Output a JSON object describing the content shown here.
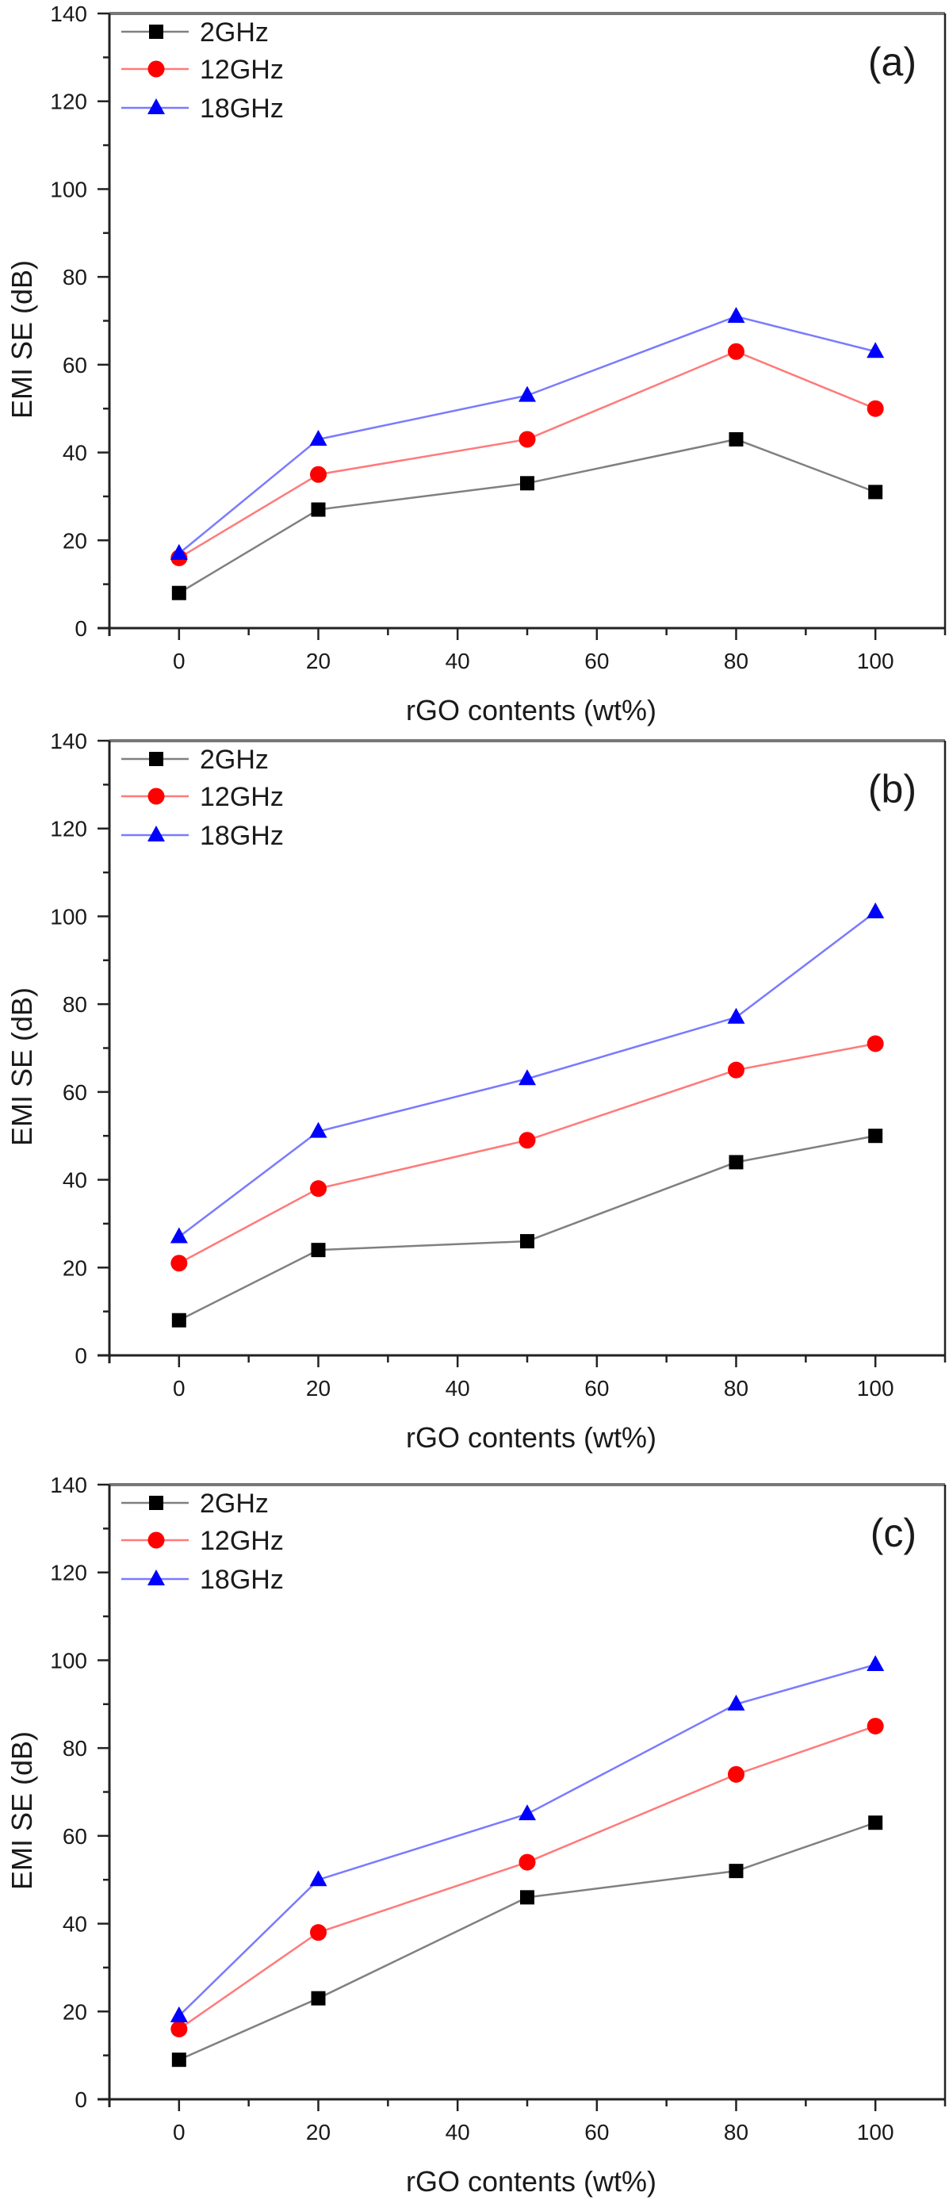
{
  "chart_data": [
    {
      "type": "line",
      "panel_label": "(a)",
      "xlabel": "rGO contents (wt%)",
      "ylabel": "EMI SE (dB)",
      "xlim": [
        -10,
        110
      ],
      "ylim": [
        0,
        140
      ],
      "xticks": [
        0,
        20,
        40,
        60,
        80,
        100
      ],
      "yticks": [
        0,
        20,
        40,
        60,
        80,
        100,
        120,
        140
      ],
      "grid": false,
      "legend_position": "top-left",
      "x": [
        0,
        20,
        50,
        80,
        100
      ],
      "series": [
        {
          "name": "2GHz",
          "marker": "square",
          "marker_color": "#000000",
          "line_color": "#808080",
          "values": [
            8,
            27,
            33,
            43,
            31
          ]
        },
        {
          "name": "12GHz",
          "marker": "circle",
          "marker_color": "#ff0000",
          "line_color": "#ff7a7a",
          "values": [
            16,
            35,
            43,
            63,
            50
          ]
        },
        {
          "name": "18GHz",
          "marker": "triangle",
          "marker_color": "#0000ff",
          "line_color": "#7a7aff",
          "values": [
            17,
            43,
            53,
            71,
            63
          ]
        }
      ]
    },
    {
      "type": "line",
      "panel_label": "(b)",
      "xlabel": "rGO contents (wt%)",
      "ylabel": "EMI SE (dB)",
      "xlim": [
        -10,
        110
      ],
      "ylim": [
        0,
        140
      ],
      "xticks": [
        0,
        20,
        40,
        60,
        80,
        100
      ],
      "yticks": [
        0,
        20,
        40,
        60,
        80,
        100,
        120,
        140
      ],
      "grid": false,
      "legend_position": "top-left",
      "x": [
        0,
        20,
        50,
        80,
        100
      ],
      "series": [
        {
          "name": "2GHz",
          "marker": "square",
          "marker_color": "#000000",
          "line_color": "#808080",
          "values": [
            8,
            24,
            26,
            44,
            50
          ]
        },
        {
          "name": "12GHz",
          "marker": "circle",
          "marker_color": "#ff0000",
          "line_color": "#ff7a7a",
          "values": [
            21,
            38,
            49,
            65,
            71
          ]
        },
        {
          "name": "18GHz",
          "marker": "triangle",
          "marker_color": "#0000ff",
          "line_color": "#7a7aff",
          "values": [
            27,
            51,
            63,
            77,
            101
          ]
        }
      ]
    },
    {
      "type": "line",
      "panel_label": "(c)",
      "xlabel": "rGO contents (wt%)",
      "ylabel": "EMI SE (dB)",
      "xlim": [
        -10,
        110
      ],
      "ylim": [
        0,
        140
      ],
      "xticks": [
        0,
        20,
        40,
        60,
        80,
        100
      ],
      "yticks": [
        0,
        20,
        40,
        60,
        80,
        100,
        120,
        140
      ],
      "grid": false,
      "legend_position": "top-left",
      "x": [
        0,
        20,
        50,
        80,
        100
      ],
      "series": [
        {
          "name": "2GHz",
          "marker": "square",
          "marker_color": "#000000",
          "line_color": "#808080",
          "values": [
            9,
            23,
            46,
            52,
            63
          ]
        },
        {
          "name": "12GHz",
          "marker": "circle",
          "marker_color": "#ff0000",
          "line_color": "#ff7a7a",
          "values": [
            16,
            38,
            54,
            74,
            85
          ]
        },
        {
          "name": "18GHz",
          "marker": "triangle",
          "marker_color": "#0000ff",
          "line_color": "#7a7aff",
          "values": [
            19,
            50,
            65,
            90,
            99
          ]
        }
      ]
    }
  ]
}
